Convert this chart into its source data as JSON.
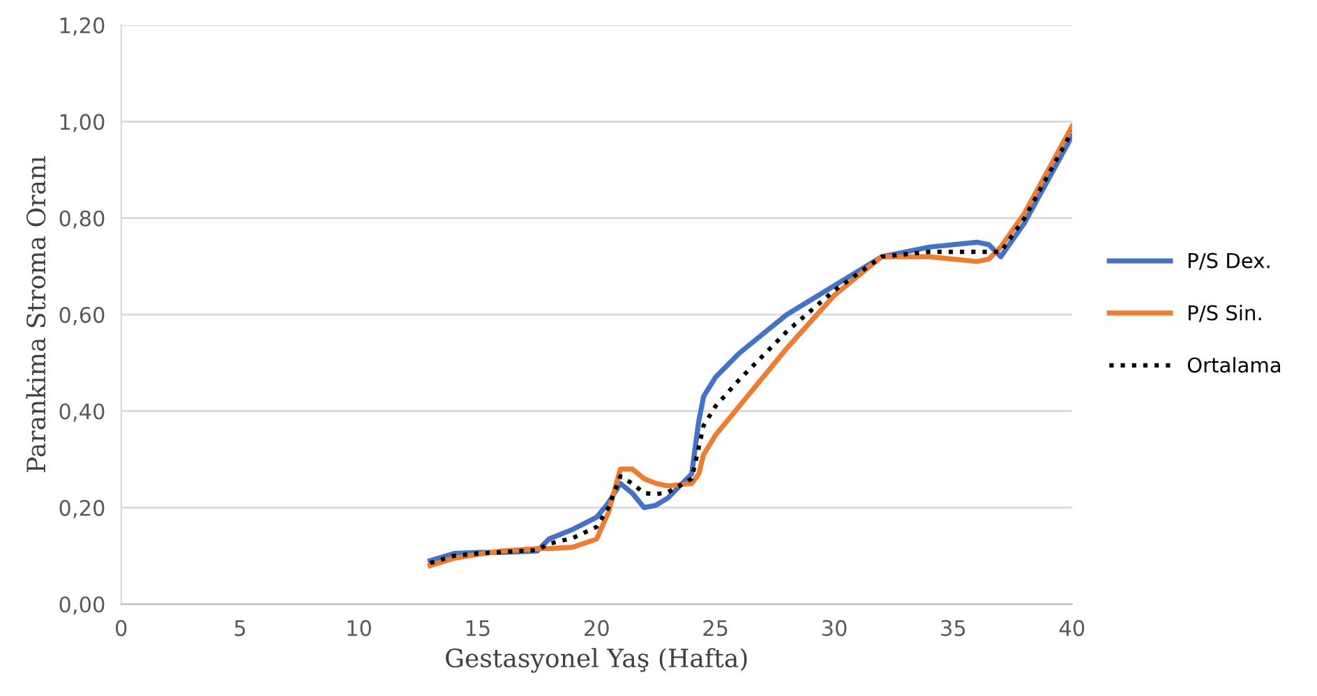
{
  "chart_data": {
    "type": "line",
    "xlabel": "Gestasyonel Yaş (Hafta)",
    "ylabel": "Parankima Stroma Oranı",
    "x": [
      13,
      14,
      15,
      16,
      17.5,
      18,
      19,
      20,
      20.5,
      21,
      21.5,
      22,
      22.5,
      23,
      24,
      24.3,
      24.5,
      25,
      26,
      27,
      28,
      30,
      32,
      34,
      36,
      36.5,
      37,
      38,
      40
    ],
    "series": [
      {
        "name": "P/S Dex.",
        "color": "#4472c4",
        "line_style": "solid",
        "values": [
          0.09,
          0.105,
          0.107,
          0.107,
          0.11,
          0.135,
          0.155,
          0.18,
          0.21,
          0.25,
          0.23,
          0.2,
          0.205,
          0.22,
          0.27,
          0.38,
          0.43,
          0.47,
          0.52,
          0.56,
          0.6,
          0.66,
          0.72,
          0.74,
          0.75,
          0.745,
          0.72,
          0.79,
          0.97
        ]
      },
      {
        "name": "P/S Sin.",
        "color": "#ed7d31",
        "line_style": "solid",
        "values": [
          0.08,
          0.095,
          0.103,
          0.11,
          0.115,
          0.115,
          0.118,
          0.135,
          0.19,
          0.28,
          0.28,
          0.26,
          0.25,
          0.245,
          0.25,
          0.27,
          0.31,
          0.35,
          0.41,
          0.47,
          0.53,
          0.64,
          0.72,
          0.72,
          0.71,
          0.715,
          0.74,
          0.81,
          0.99
        ]
      },
      {
        "name": "Ortalama",
        "color": "#000000",
        "line_style": "dotted",
        "values": [
          0.085,
          0.1,
          0.105,
          0.108,
          0.112,
          0.125,
          0.137,
          0.16,
          0.2,
          0.265,
          0.25,
          0.23,
          0.228,
          0.232,
          0.26,
          0.325,
          0.37,
          0.41,
          0.465,
          0.515,
          0.565,
          0.65,
          0.72,
          0.73,
          0.73,
          0.73,
          0.73,
          0.8,
          0.98
        ]
      }
    ],
    "xlim": [
      0,
      40
    ],
    "xticks": [
      0,
      5,
      10,
      15,
      20,
      25,
      30,
      35,
      40
    ],
    "ylim": [
      0,
      1.2
    ],
    "yticks": [
      {
        "value": 0,
        "label": "0,00"
      },
      {
        "value": 0.2,
        "label": "0,20"
      },
      {
        "value": 0.4,
        "label": "0,40"
      },
      {
        "value": 0.6,
        "label": "0,60"
      },
      {
        "value": 0.8,
        "label": "0,80"
      },
      {
        "value": 1.0,
        "label": "1,00"
      },
      {
        "value": 1.2,
        "label": "1,20"
      }
    ],
    "grid": "y",
    "legend": "right",
    "marker": "none"
  }
}
